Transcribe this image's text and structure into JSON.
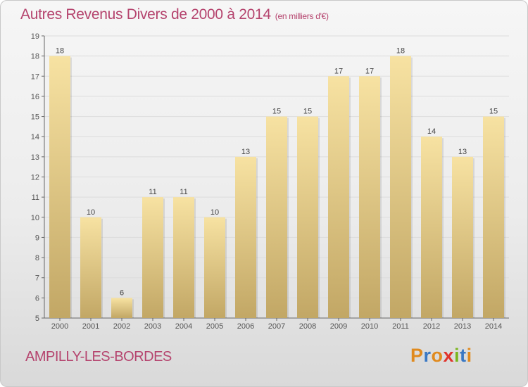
{
  "header": {
    "title": "Autres Revenus Divers de 2000 à 2014",
    "subtitle": "(en milliers d'€)"
  },
  "footer": {
    "location": "AMPILLY-LES-BORDES",
    "brand": {
      "letters": [
        "P",
        "r",
        "o",
        "x",
        "i",
        "t",
        "i"
      ],
      "colors": [
        "#e08a1e",
        "#3a78c4",
        "#e08a1e",
        "#e0332c",
        "#7ab51d",
        "#3a78c4",
        "#e08a1e"
      ]
    }
  },
  "colors": {
    "title": "#b5446e",
    "bar_light": "#f7e2a2",
    "bar_dark": "#c2a765",
    "axis": "#666666",
    "grid": "#dcdcdc"
  },
  "chart_data": {
    "type": "bar",
    "categories": [
      "2000",
      "2001",
      "2002",
      "2003",
      "2004",
      "2005",
      "2006",
      "2007",
      "2008",
      "2009",
      "2010",
      "2011",
      "2012",
      "2013",
      "2014"
    ],
    "values": [
      18,
      10,
      6,
      11,
      11,
      10,
      13,
      15,
      15,
      17,
      17,
      18,
      14,
      13,
      15
    ],
    "yticks": [
      5,
      6,
      7,
      8,
      9,
      10,
      11,
      12,
      13,
      14,
      15,
      16,
      17,
      18,
      19
    ],
    "ylim": [
      5,
      19
    ],
    "grid": true,
    "data_labels": true
  }
}
